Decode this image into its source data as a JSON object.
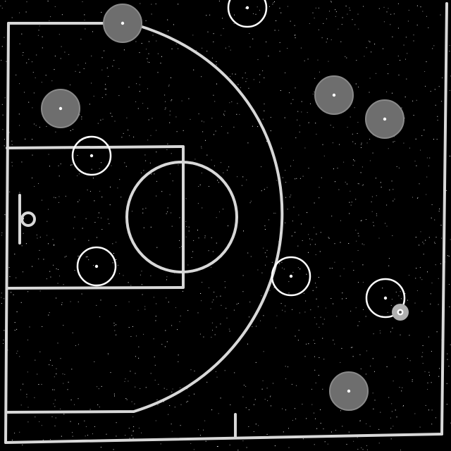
{
  "scene": {
    "background_color": "#000000",
    "line_color": "#d8d8d8",
    "noise": "white speckle"
  },
  "court": {
    "view": "half-court",
    "features": [
      "sideline",
      "baseline",
      "half-court-line",
      "three-point-arc",
      "key",
      "center-circle",
      "backboard",
      "rim"
    ]
  },
  "teams": {
    "offense": {
      "style": "hollow-ring",
      "color": "#ffffff"
    },
    "defense": {
      "style": "filled-disc",
      "color": "#6e6e6e"
    }
  },
  "players": [
    {
      "id": "defender-1",
      "team": "defense"
    },
    {
      "id": "defender-2",
      "team": "defense"
    },
    {
      "id": "defender-3",
      "team": "defense"
    },
    {
      "id": "defender-4",
      "team": "defense"
    },
    {
      "id": "defender-5",
      "team": "defense"
    },
    {
      "id": "attacker-1",
      "team": "offense"
    },
    {
      "id": "attacker-2",
      "team": "offense"
    },
    {
      "id": "attacker-3",
      "team": "offense"
    },
    {
      "id": "attacker-4",
      "team": "offense"
    },
    {
      "id": "attacker-5",
      "team": "offense"
    }
  ],
  "ball": {
    "held_by": "attacker-5",
    "color": "#b0b0b0"
  }
}
